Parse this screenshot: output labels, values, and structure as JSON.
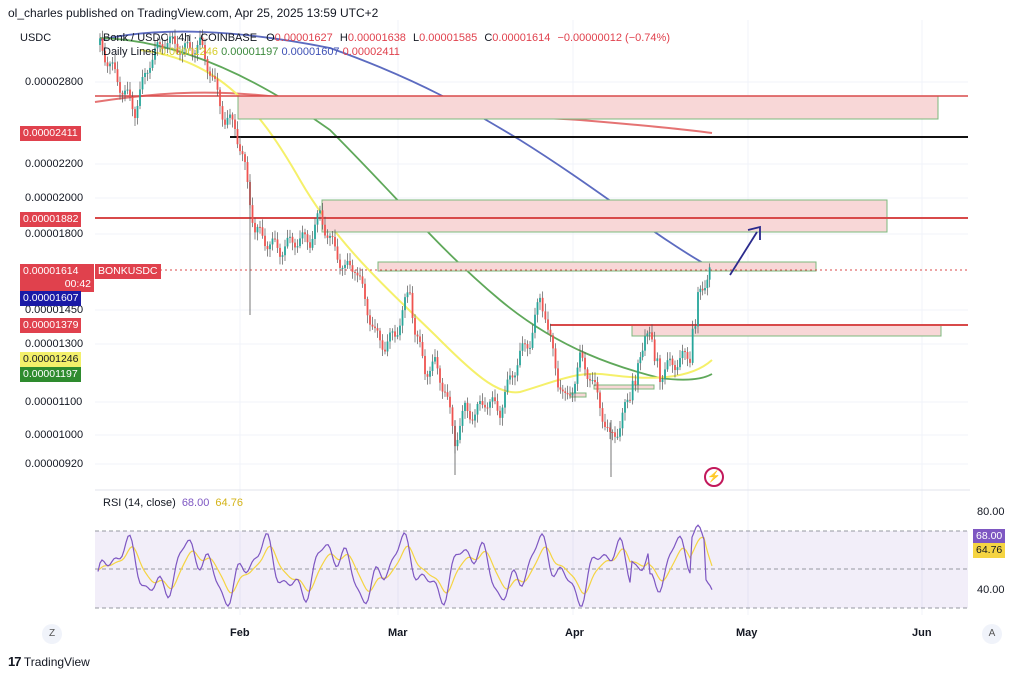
{
  "header": {
    "published": "ol_charles published on TradingView.com, Apr 25, 2025 13:59 UTC+2"
  },
  "symbol": {
    "quote_label": "USDC",
    "title": "Bonk / USDC · 4h · COINBASE",
    "ohlc": {
      "o_label": "O",
      "o": "0.00001627",
      "h_label": "H",
      "h": "0.00001638",
      "l_label": "L",
      "l": "0.00001585",
      "c_label": "C",
      "c": "0.00001614",
      "change": "−0.00000012 (−0.74%)"
    },
    "daily_lines": {
      "label": "Daily Lines",
      "v1": "0.00001246",
      "v2": "0.00001197",
      "v3": "0.00001607",
      "v4": "0.00002411"
    }
  },
  "price_axis": {
    "ticks": [
      "0.00002800",
      "0.00002200",
      "0.00002000",
      "0.00001800",
      "0.00001450",
      "0.00001300",
      "0.00001100",
      "0.00001000",
      "0.00000920"
    ],
    "labels": {
      "ma_red": "0.00002411",
      "resistance": "0.00001882",
      "last_price": "0.00001614",
      "countdown": "00:42",
      "symbol_tag": "BONKUSDC",
      "ma_blue": "0.00001607",
      "support": "0.00001379",
      "ma_yellow": "0.00001246",
      "ma_green": "0.00001197"
    }
  },
  "rsi": {
    "title": "RSI (14, close)",
    "value": "68.00",
    "ma_value": "64.76",
    "ticks": [
      "80.00",
      "40.00"
    ]
  },
  "time_axis": {
    "ticks": [
      "Feb",
      "Mar",
      "Apr",
      "May",
      "Jun"
    ],
    "z_button": "Z",
    "a_button": "A"
  },
  "footer": {
    "brand": "TradingView"
  },
  "colors": {
    "ma_red": "#e57373",
    "ma_blue": "#5c6bc0",
    "ma_yellow": "#f5f06a",
    "ma_green": "#5fa85a",
    "candle_up": "#26a69a",
    "candle_down": "#ef5350",
    "candle_line": "#555555",
    "resistance_line": "#d84a4a",
    "black_line": "#111111",
    "zone_fill": "#f8d7d7",
    "zone_border": "#7cb87c",
    "rsi_line": "#7e57c2",
    "rsi_ma": "#f5d442",
    "arrow": "#2a2a8c"
  }
}
